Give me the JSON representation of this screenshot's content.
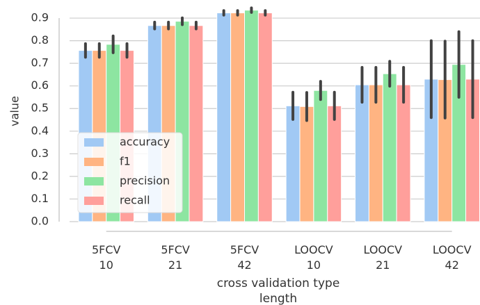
{
  "chart_data": {
    "type": "bar",
    "categories": [
      "5FCV\n10",
      "5FCV\n21",
      "5FCV\n42",
      "LOOCV\n10",
      "LOOCV\n21",
      "LOOCV\n42"
    ],
    "series": [
      {
        "name": "accuracy",
        "color": "#a1c9f4",
        "values": [
          0.757,
          0.867,
          0.923,
          0.512,
          0.605,
          0.63
        ],
        "errors": [
          0.03,
          0.015,
          0.01,
          0.06,
          0.077,
          0.17
        ]
      },
      {
        "name": "f1",
        "color": "#ffb482",
        "values": [
          0.757,
          0.867,
          0.923,
          0.509,
          0.605,
          0.628
        ],
        "errors": [
          0.03,
          0.015,
          0.01,
          0.062,
          0.077,
          0.17
        ]
      },
      {
        "name": "precision",
        "color": "#8de5a1",
        "values": [
          0.784,
          0.886,
          0.935,
          0.58,
          0.654,
          0.695
        ],
        "errors": [
          0.037,
          0.015,
          0.01,
          0.04,
          0.055,
          0.145
        ]
      },
      {
        "name": "recall",
        "color": "#ff9f9b",
        "values": [
          0.757,
          0.867,
          0.923,
          0.512,
          0.605,
          0.63
        ],
        "errors": [
          0.03,
          0.015,
          0.01,
          0.06,
          0.077,
          0.17
        ]
      }
    ],
    "xlabel": "cross validation type\nlength",
    "ylabel": "value",
    "ylim": [
      0,
      0.98
    ],
    "yticks": [
      {
        "value": 0,
        "label": "0.0"
      },
      0.1,
      0.2,
      0.3,
      0.4,
      0.5,
      0.6,
      0.7,
      0.8,
      0.9
    ],
    "grid": true,
    "legend": "lower left"
  }
}
